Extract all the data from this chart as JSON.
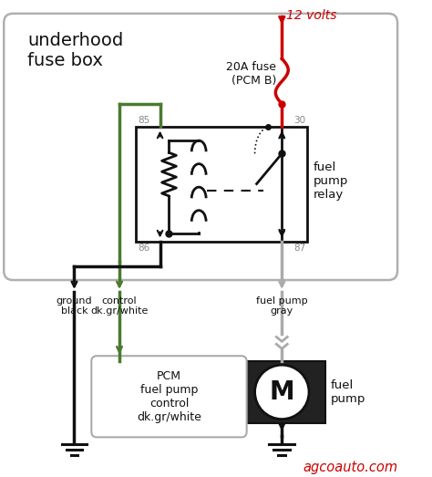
{
  "bg_color": "#ffffff",
  "box_color": "#b0b0b0",
  "fuse_box_label": "underhood\nfuse box",
  "relay_label": "fuel\npump\nrelay",
  "fuse_label": "20A fuse\n(PCM B)",
  "voltage_label": "12 volts",
  "pcm_label": "PCM\nfuel pump\ncontrol\ndk.gr/white",
  "fuel_pump_label": "fuel\npump",
  "ground_label": "ground\nblack",
  "control_label": "control\ndk.gr/white",
  "fuel_pump_wire_label": "fuel pump\ngray",
  "watermark": "agcoauto.com",
  "red_color": "#cc0000",
  "green_color": "#4a7a30",
  "black_color": "#111111",
  "light_gray": "#aaaaaa",
  "text_gray": "#888888",
  "dark_gray": "#555555"
}
